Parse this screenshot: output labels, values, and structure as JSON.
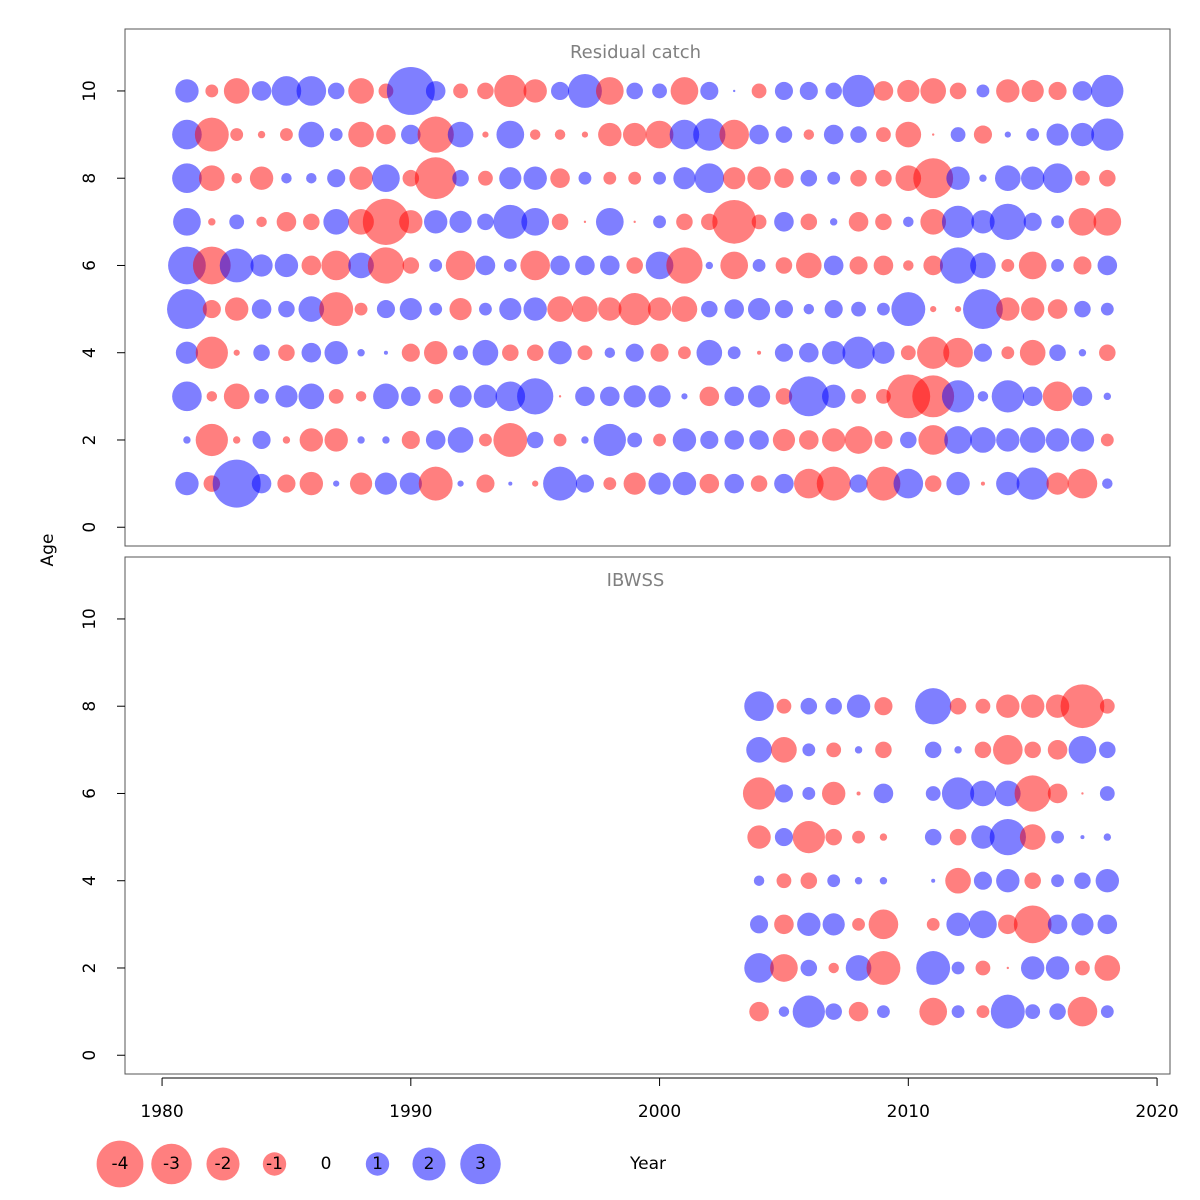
{
  "ylabel": "Age",
  "xlabel": "Year",
  "colors": {
    "negative": "#ff0000",
    "positive": "#0000ff"
  },
  "opacity": 0.5,
  "size_legend": [
    -4,
    -3,
    -2,
    -1,
    0,
    1,
    2,
    3
  ],
  "chart_data": [
    {
      "type": "bubble",
      "title": "Residual catch",
      "x": [
        1981,
        1982,
        1983,
        1984,
        1985,
        1986,
        1987,
        1988,
        1989,
        1990,
        1991,
        1992,
        1993,
        1994,
        1995,
        1996,
        1997,
        1998,
        1999,
        2000,
        2001,
        2002,
        2003,
        2004,
        2005,
        2006,
        2007,
        2008,
        2009,
        2010,
        2011,
        2012,
        2013,
        2014,
        2015,
        2016,
        2017,
        2018
      ],
      "ages": [
        1,
        2,
        3,
        4,
        5,
        6,
        7,
        8,
        9,
        10
      ],
      "values": [
        [
          1.0,
          -0.5,
          4.2,
          0.7,
          -0.6,
          -1.0,
          0.07,
          -0.9,
          0.9,
          0.9,
          -2.1,
          0.07,
          -0.6,
          0.03,
          -0.07,
          2.1,
          0.6,
          -0.3,
          -0.9,
          0.9,
          1.0,
          -0.7,
          0.7,
          -0.5,
          0.7,
          -1.6,
          -2.1,
          0.6,
          -2.1,
          1.6,
          -0.5,
          1.0,
          -0.03,
          1.0,
          1.9,
          -0.9,
          -1.6,
          0.2
        ],
        [
          0.1,
          -1.9,
          -0.1,
          0.6,
          -0.1,
          -1.0,
          -1.0,
          0.1,
          0.1,
          -0.6,
          0.7,
          1.2,
          -0.3,
          -2.1,
          0.5,
          -0.3,
          0.1,
          1.9,
          0.4,
          -0.3,
          1.0,
          0.6,
          0.7,
          0.7,
          -0.9,
          -0.7,
          -1.0,
          -1.4,
          -0.6,
          0.5,
          -1.6,
          1.4,
          1.2,
          1.0,
          1.2,
          1.0,
          1.0,
          -0.3
        ],
        [
          1.6,
          -0.2,
          -1.2,
          0.4,
          0.9,
          1.2,
          -0.4,
          -0.2,
          1.2,
          0.7,
          -0.4,
          0.9,
          1.0,
          1.6,
          2.4,
          -0.01,
          0.7,
          0.7,
          0.9,
          0.9,
          0.07,
          -0.7,
          0.7,
          0.9,
          -0.5,
          2.9,
          1.0,
          -0.4,
          -0.4,
          -3.5,
          -3.2,
          1.9,
          0.2,
          1.9,
          0.7,
          -1.6,
          0.7,
          0.1
        ],
        [
          0.9,
          -1.9,
          -0.07,
          0.5,
          -0.5,
          0.7,
          1.0,
          0.1,
          0.03,
          -0.6,
          -1.0,
          0.4,
          1.2,
          -0.5,
          -0.5,
          1.0,
          -0.4,
          0.2,
          0.6,
          -0.6,
          -0.3,
          1.2,
          0.3,
          -0.03,
          0.6,
          0.7,
          1.0,
          1.9,
          0.9,
          -0.4,
          -1.9,
          -1.6,
          0.6,
          -0.3,
          -1.2,
          0.5,
          0.1,
          -0.5
        ],
        [
          2.9,
          -0.6,
          -1.0,
          0.7,
          0.5,
          1.2,
          -2.1,
          -0.3,
          0.6,
          0.9,
          0.3,
          -0.9,
          0.3,
          0.9,
          1.0,
          -1.2,
          -1.2,
          -1.0,
          -1.9,
          -1.0,
          -1.2,
          0.5,
          0.7,
          0.9,
          0.6,
          0.2,
          0.6,
          0.4,
          0.3,
          2.1,
          -0.07,
          -0.07,
          2.9,
          -1.0,
          -1.0,
          -0.7,
          0.5,
          0.3
        ],
        [
          2.6,
          -2.6,
          2.1,
          0.9,
          1.0,
          -0.7,
          -1.6,
          1.2,
          -2.4,
          -0.5,
          0.3,
          -1.6,
          0.7,
          0.3,
          -1.6,
          0.7,
          0.7,
          0.7,
          -0.5,
          1.4,
          -2.4,
          0.1,
          -1.4,
          0.3,
          -0.5,
          -1.2,
          0.7,
          -0.6,
          -0.7,
          -0.2,
          -0.7,
          2.4,
          1.2,
          -0.3,
          -1.4,
          0.3,
          -0.6,
          0.7
        ],
        [
          1.4,
          -0.1,
          0.4,
          -0.2,
          -0.7,
          -0.5,
          1.2,
          -1.2,
          -3.9,
          -1.0,
          1.0,
          0.9,
          0.5,
          2.1,
          1.4,
          -0.5,
          -0.01,
          1.4,
          -0.01,
          0.3,
          -0.5,
          -0.5,
          -3.5,
          -0.4,
          0.7,
          -0.5,
          0.1,
          -0.7,
          -0.5,
          0.2,
          -1.2,
          1.9,
          1.0,
          2.4,
          0.6,
          0.3,
          -1.4,
          -1.4
        ],
        [
          1.6,
          -1.2,
          -0.2,
          -1.0,
          0.2,
          0.2,
          0.6,
          -1.0,
          1.4,
          -0.5,
          -3.2,
          0.5,
          -0.4,
          0.9,
          1.0,
          -0.7,
          0.3,
          -0.3,
          -0.3,
          0.3,
          0.9,
          1.6,
          -0.9,
          -1.0,
          -0.7,
          0.5,
          0.3,
          -0.5,
          -0.5,
          -1.2,
          -2.9,
          1.0,
          0.1,
          1.2,
          1.0,
          1.6,
          -0.4,
          -0.5
        ],
        [
          1.6,
          -2.1,
          -0.3,
          -0.1,
          -0.3,
          1.2,
          0.3,
          -1.2,
          -0.7,
          0.7,
          -2.4,
          1.2,
          -0.07,
          1.4,
          -0.2,
          -0.2,
          -0.07,
          -1.0,
          -1.0,
          -1.4,
          1.6,
          1.9,
          -1.6,
          0.7,
          0.5,
          -0.2,
          0.7,
          0.5,
          -0.4,
          -1.2,
          -0.01,
          0.4,
          -0.6,
          0.07,
          0.3,
          0.9,
          1.0,
          1.9
        ],
        [
          1.0,
          -0.3,
          -1.2,
          0.7,
          1.6,
          1.6,
          0.5,
          -1.2,
          -0.4,
          4.2,
          0.7,
          -0.4,
          -0.5,
          -1.9,
          -1.0,
          0.6,
          2.1,
          -1.4,
          0.5,
          0.4,
          -1.4,
          0.6,
          0.01,
          -0.4,
          0.6,
          0.6,
          0.5,
          1.9,
          -0.7,
          -0.9,
          -1.2,
          -0.5,
          0.3,
          -1.0,
          -0.9,
          -0.6,
          0.7,
          1.9
        ]
      ],
      "xlim": [
        1978.51,
        2020.52
      ],
      "ylim": [
        -0.43,
        11.42
      ],
      "yticks": [
        0,
        2,
        4,
        6,
        8,
        10
      ]
    },
    {
      "type": "bubble",
      "title": "IBWSS",
      "x": [
        2004,
        2005,
        2006,
        2007,
        2008,
        2009,
        2011,
        2012,
        2013,
        2014,
        2015,
        2016,
        2017,
        2018
      ],
      "ages": [
        1,
        2,
        3,
        4,
        5,
        6,
        7,
        8
      ],
      "values": [
        [
          -0.7,
          0.2,
          1.9,
          0.5,
          -0.7,
          0.3,
          -1.4,
          0.3,
          -0.3,
          2.1,
          0.4,
          0.5,
          -1.6,
          0.3
        ],
        [
          1.6,
          -1.4,
          0.5,
          -0.2,
          1.2,
          -2.1,
          2.1,
          0.3,
          -0.4,
          -0.01,
          1.0,
          1.0,
          -0.4,
          -1.2
        ],
        [
          0.6,
          -0.7,
          1.0,
          0.9,
          -0.3,
          -1.6,
          -0.3,
          1.0,
          1.4,
          -0.7,
          -2.6,
          0.7,
          0.9,
          0.7
        ],
        [
          0.2,
          -0.4,
          -0.5,
          0.3,
          0.1,
          0.1,
          0.03,
          -1.2,
          0.6,
          1.0,
          -0.5,
          0.3,
          0.5,
          1.0
        ],
        [
          -1.0,
          0.6,
          -1.9,
          -0.5,
          -0.3,
          -0.1,
          0.5,
          -0.5,
          1.0,
          2.4,
          -1.2,
          0.3,
          0.03,
          0.1
        ],
        [
          -1.9,
          0.6,
          0.3,
          -1.0,
          -0.03,
          0.7,
          0.4,
          1.9,
          1.2,
          1.2,
          -2.4,
          -0.7,
          -0.01,
          0.4
        ],
        [
          1.2,
          -1.2,
          0.3,
          -0.4,
          0.1,
          -0.5,
          0.5,
          0.1,
          -0.5,
          -1.6,
          -0.5,
          -0.7,
          1.4,
          0.5
        ],
        [
          1.6,
          -0.4,
          0.5,
          0.5,
          1.0,
          -0.6,
          2.4,
          -0.5,
          -0.4,
          -1.0,
          -1.0,
          -1.0,
          -3.5,
          -0.4
        ]
      ],
      "xlim": [
        1978.51,
        2020.52
      ],
      "ylim": [
        -0.43,
        11.42
      ],
      "yticks": [
        0,
        2,
        4,
        6,
        8,
        10
      ],
      "xticks": [
        1980,
        1990,
        2000,
        2010,
        2020
      ]
    }
  ]
}
